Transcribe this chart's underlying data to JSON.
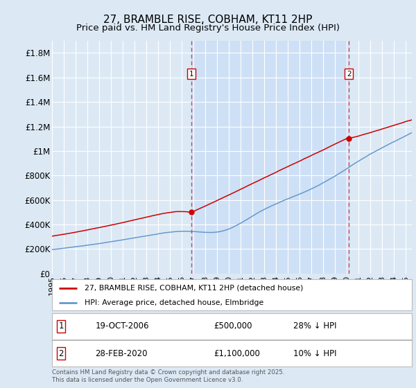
{
  "title": "27, BRAMBLE RISE, COBHAM, KT11 2HP",
  "subtitle": "Price paid vs. HM Land Registry's House Price Index (HPI)",
  "background_color": "#dce9f5",
  "plot_bg_color": "#dce9f5",
  "ylim": [
    0,
    1900000
  ],
  "yticks": [
    0,
    200000,
    400000,
    600000,
    800000,
    1000000,
    1200000,
    1400000,
    1600000,
    1800000
  ],
  "ytick_labels": [
    "£0",
    "£200K",
    "£400K",
    "£600K",
    "£800K",
    "£1M",
    "£1.2M",
    "£1.4M",
    "£1.6M",
    "£1.8M"
  ],
  "xlim_start": 1995.0,
  "xlim_end": 2025.5,
  "sale1_date": 2006.8,
  "sale1_price": 500000,
  "sale1_label": "1",
  "sale2_date": 2020.16,
  "sale2_price": 1100000,
  "sale2_label": "2",
  "red_line_color": "#cc0000",
  "blue_line_color": "#6699cc",
  "dashed_line_color": "#dd4444",
  "shade_color": "#ccdff5",
  "legend_label_red": "27, BRAMBLE RISE, COBHAM, KT11 2HP (detached house)",
  "legend_label_blue": "HPI: Average price, detached house, Elmbridge",
  "table_row1": [
    "1",
    "19-OCT-2006",
    "£500,000",
    "28% ↓ HPI"
  ],
  "table_row2": [
    "2",
    "28-FEB-2020",
    "£1,100,000",
    "10% ↓ HPI"
  ],
  "footnote": "Contains HM Land Registry data © Crown copyright and database right 2025.\nThis data is licensed under the Open Government Licence v3.0.",
  "title_fontsize": 11,
  "subtitle_fontsize": 9.5,
  "tick_fontsize": 8.5
}
